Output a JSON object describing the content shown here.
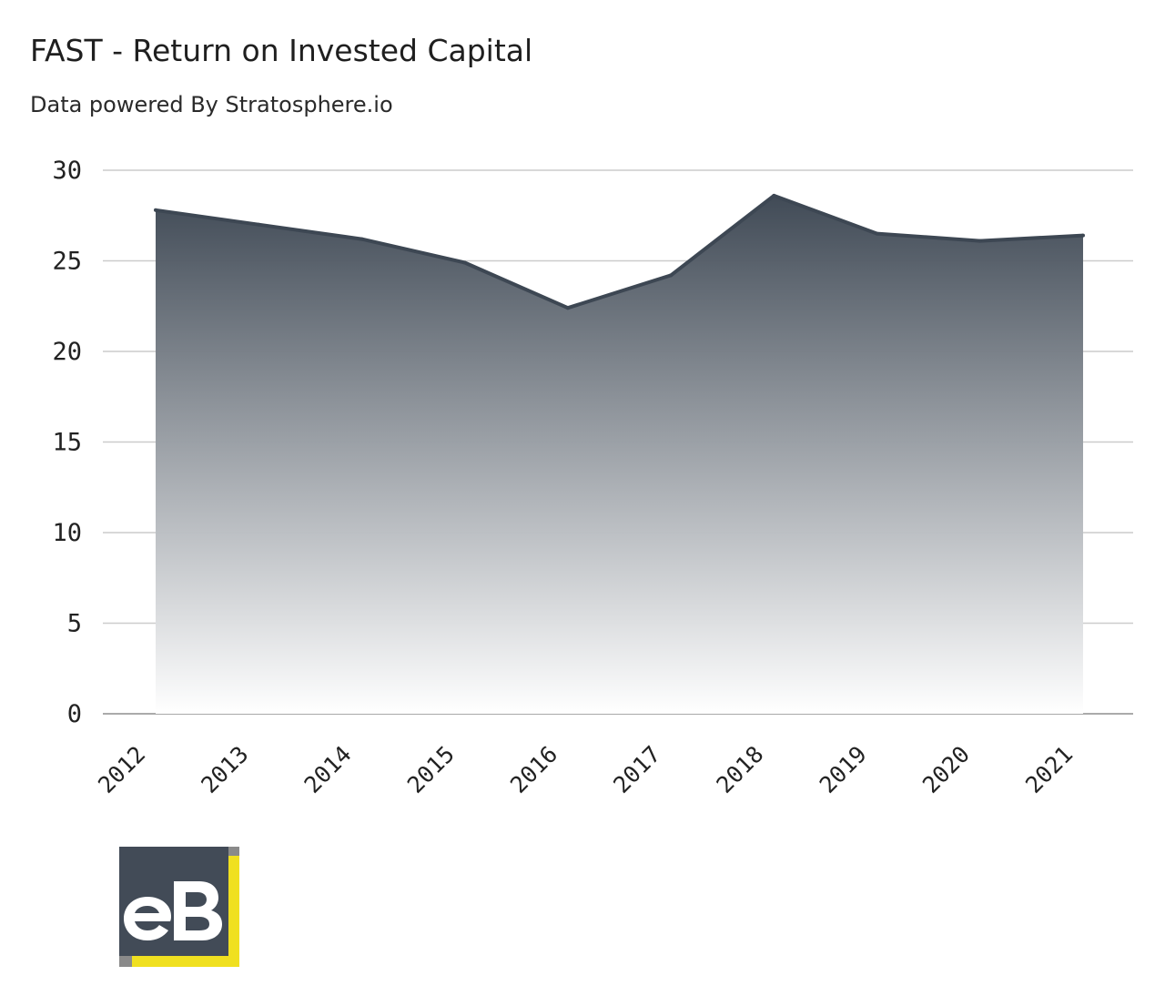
{
  "header": {
    "title": "FAST - Return on Invested Capital",
    "subtitle": "Data powered By Stratosphere.io"
  },
  "logo": {
    "text": "eB",
    "colors": {
      "panel": "#424b57",
      "accent": "#f0e020",
      "shadow": "#8a8a8a",
      "letters": "#ffffff"
    }
  },
  "colors": {
    "line": "#3d4753",
    "fill_top": "#3d4753",
    "fill_bottom": "#ffffff",
    "grid": "#cccccc",
    "axis": "#aaaaaa"
  },
  "chart_data": {
    "type": "area",
    "title": "FAST - Return on Invested Capital",
    "subtitle": "Data powered By Stratosphere.io",
    "xlabel": "",
    "ylabel": "",
    "categories": [
      "2012",
      "2013",
      "2014",
      "2015",
      "2016",
      "2017",
      "2018",
      "2019",
      "2020",
      "2021"
    ],
    "series": [
      {
        "values": [
          27.8,
          27.0,
          26.2,
          24.9,
          22.4,
          24.2,
          28.6,
          26.5,
          26.1,
          26.4
        ]
      }
    ],
    "ylim": [
      0,
      30
    ],
    "yticks": [
      0,
      5,
      10,
      15,
      20,
      25,
      30
    ],
    "grid": true,
    "legend": "none"
  }
}
